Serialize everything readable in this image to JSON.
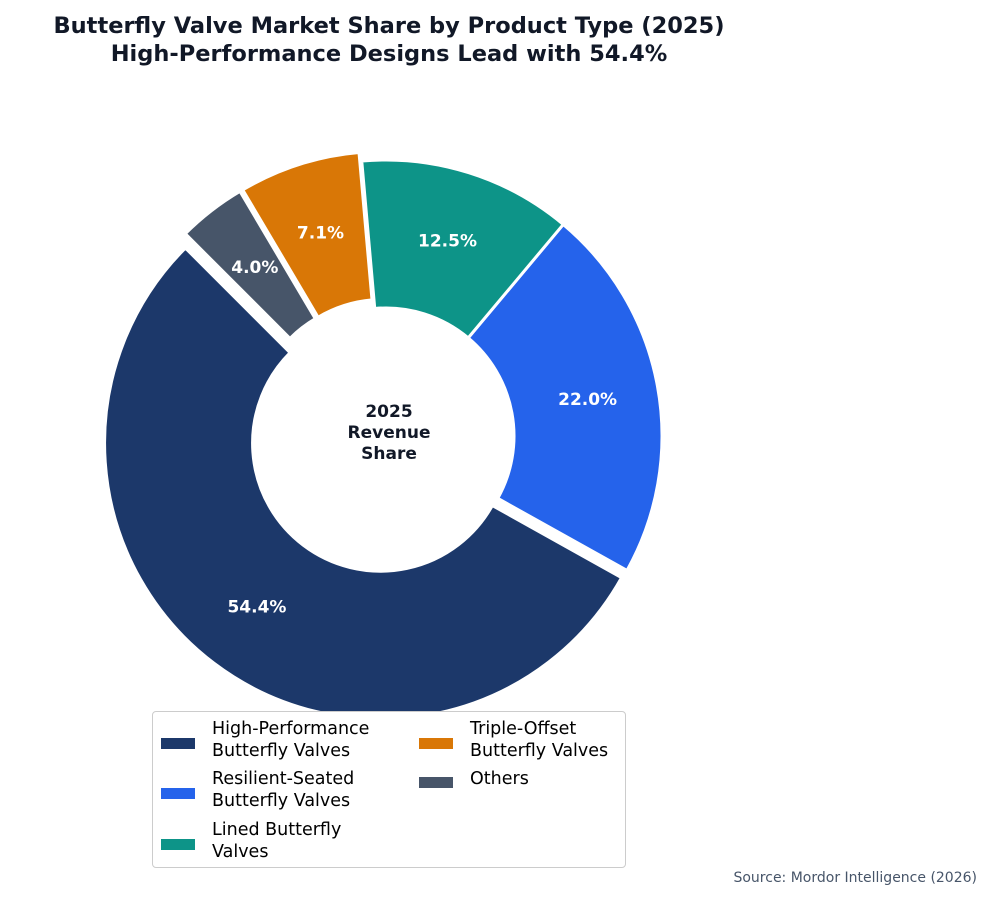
{
  "title_line1": "Butterfly Valve Market Share by Product Type (2025)",
  "title_line2": "High-Performance Designs Lead with 54.4%",
  "source": "Source: Mordor Intelligence (2026)",
  "chart_data": {
    "type": "pie",
    "donut": true,
    "start_angle_deg": 135,
    "direction": "counterclockwise",
    "center_label": [
      "2025",
      "Revenue",
      "Share"
    ],
    "categories": [
      "High-Performance Butterfly Valves",
      "Resilient-Seated Butterfly Valves",
      "Lined Butterfly Valves",
      "Triple-Offset Butterfly Valves",
      "Others"
    ],
    "values": [
      54.4,
      22.0,
      12.5,
      7.1,
      4.0
    ],
    "labels": [
      "54.4%",
      "22.0%",
      "12.5%",
      "7.1%",
      "4.0%"
    ],
    "exploded": [
      true,
      false,
      false,
      true,
      true
    ],
    "colors": [
      "#1c386a",
      "#2563eb",
      "#0d9488",
      "#d97706",
      "#475569"
    ],
    "legend_placement": "bottom",
    "legend": [
      [
        "High-Performance",
        "Butterfly Valves"
      ],
      [
        "Resilient-Seated",
        "Butterfly Valves"
      ],
      [
        "Lined Butterfly",
        "Valves"
      ],
      [
        "Triple-Offset",
        "Butterfly Valves"
      ],
      [
        "Others"
      ]
    ]
  }
}
